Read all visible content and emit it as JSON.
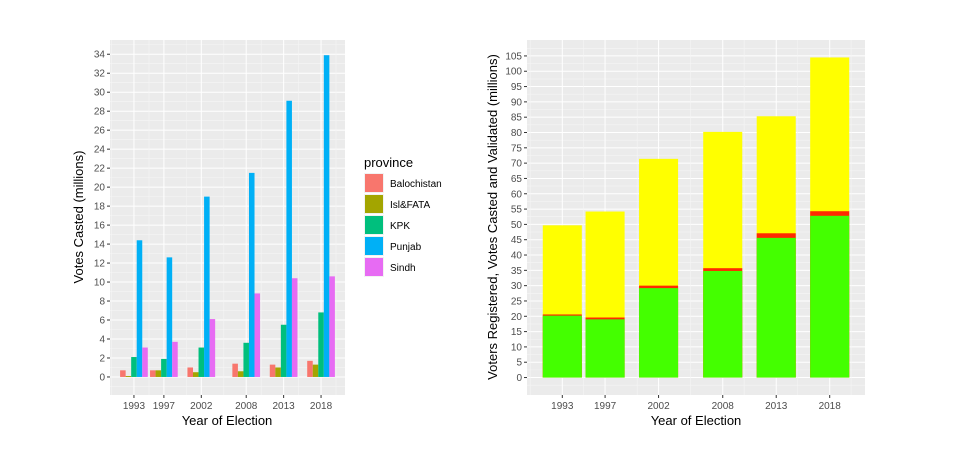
{
  "chart_data": [
    {
      "type": "bar",
      "mode": "grouped",
      "xlabel": "Year of Election",
      "ylabel": "Votes Casted (millions)",
      "x": [
        1993,
        1997,
        2002,
        2008,
        2013,
        2018
      ],
      "ylim": [
        0,
        34
      ],
      "yticks": [
        0,
        2,
        4,
        6,
        8,
        10,
        12,
        14,
        16,
        18,
        20,
        22,
        24,
        26,
        28,
        30,
        32,
        34
      ],
      "grid": true,
      "legend": {
        "title": "province",
        "position": "right"
      },
      "series": [
        {
          "name": "Balochistan",
          "color": "#F8766D",
          "values": [
            0.7,
            0.7,
            1.0,
            1.4,
            1.3,
            1.7
          ]
        },
        {
          "name": "Isl&FATA",
          "color": "#A3A500",
          "values": [
            0.1,
            0.7,
            0.5,
            0.6,
            1.0,
            1.3
          ]
        },
        {
          "name": "KPK",
          "color": "#00BF7D",
          "values": [
            2.1,
            1.9,
            3.1,
            3.6,
            5.5,
            6.8
          ]
        },
        {
          "name": "Punjab",
          "color": "#00B0F6",
          "values": [
            14.4,
            12.6,
            19.0,
            21.5,
            29.1,
            33.9
          ]
        },
        {
          "name": "Sindh",
          "color": "#E76BF3",
          "values": [
            3.1,
            3.7,
            6.1,
            8.8,
            10.4,
            10.6
          ]
        }
      ]
    },
    {
      "type": "bar",
      "mode": "overlaid",
      "xlabel": "Year of Election",
      "ylabel": "Voters Registered, Votes Casted and Validated (millions)",
      "x": [
        1993,
        1997,
        2002,
        2008,
        2013,
        2018
      ],
      "ylim": [
        0,
        105
      ],
      "yticks": [
        0,
        5,
        10,
        15,
        20,
        25,
        30,
        35,
        40,
        45,
        50,
        55,
        60,
        65,
        70,
        75,
        80,
        85,
        90,
        95,
        100,
        105
      ],
      "grid": true,
      "series": [
        {
          "color": "#FFFF00",
          "values": [
            49.7,
            54.2,
            71.4,
            80.2,
            85.3,
            104.5
          ]
        },
        {
          "color": "#FF2A00",
          "values": [
            20.6,
            19.6,
            30.0,
            35.7,
            47.1,
            54.3
          ]
        },
        {
          "color": "#44FF00",
          "values": [
            20.2,
            19.0,
            29.2,
            34.8,
            45.6,
            52.8
          ]
        }
      ]
    }
  ]
}
